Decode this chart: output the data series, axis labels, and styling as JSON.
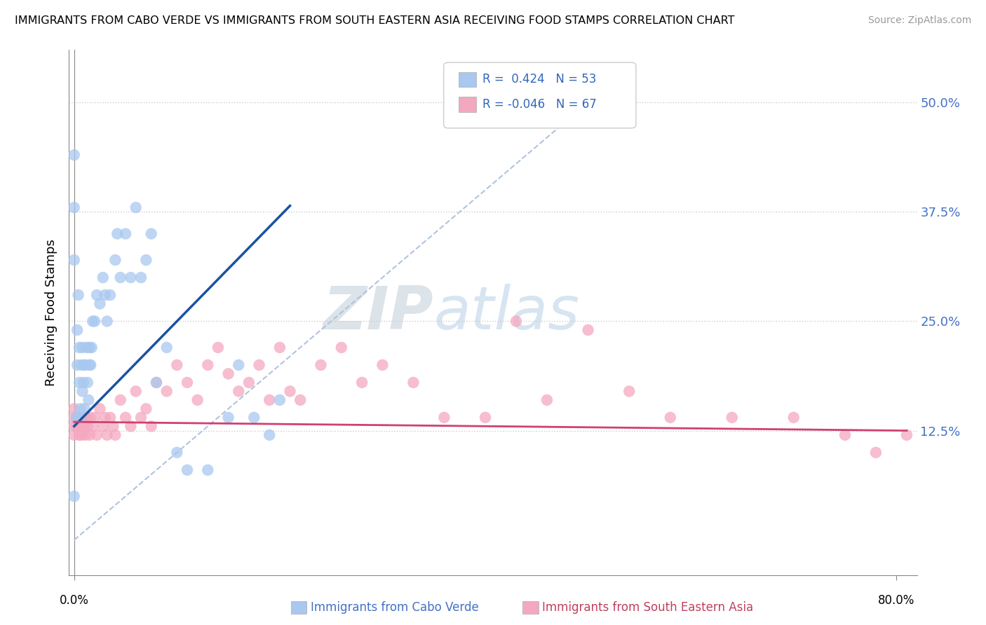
{
  "title": "IMMIGRANTS FROM CABO VERDE VS IMMIGRANTS FROM SOUTH EASTERN ASIA RECEIVING FOOD STAMPS CORRELATION CHART",
  "source": "Source: ZipAtlas.com",
  "ylabel": "Receiving Food Stamps",
  "ytick_labels": [
    "12.5%",
    "25.0%",
    "37.5%",
    "50.0%"
  ],
  "ytick_values": [
    0.125,
    0.25,
    0.375,
    0.5
  ],
  "xlim": [
    -0.005,
    0.82
  ],
  "ylim": [
    -0.04,
    0.56
  ],
  "legend_label1": "Immigrants from Cabo Verde",
  "legend_label2": "Immigrants from South Eastern Asia",
  "R1": "0.424",
  "N1": "53",
  "R2": "-0.046",
  "N2": "67",
  "color1": "#a8c8f0",
  "color2": "#f4a8c0",
  "line_color1": "#1a52a0",
  "line_color2": "#d04070",
  "diagonal_color": "#b0c4de",
  "cabo_verde_x": [
    0.0,
    0.0,
    0.0,
    0.0,
    0.002,
    0.003,
    0.003,
    0.004,
    0.005,
    0.005,
    0.005,
    0.006,
    0.007,
    0.008,
    0.008,
    0.009,
    0.01,
    0.01,
    0.011,
    0.012,
    0.013,
    0.014,
    0.015,
    0.015,
    0.016,
    0.017,
    0.018,
    0.02,
    0.022,
    0.025,
    0.028,
    0.03,
    0.032,
    0.035,
    0.04,
    0.042,
    0.045,
    0.05,
    0.055,
    0.06,
    0.065,
    0.07,
    0.075,
    0.08,
    0.09,
    0.1,
    0.11,
    0.13,
    0.15,
    0.16,
    0.175,
    0.19,
    0.2
  ],
  "cabo_verde_y": [
    0.44,
    0.38,
    0.32,
    0.05,
    0.14,
    0.2,
    0.24,
    0.28,
    0.14,
    0.18,
    0.22,
    0.15,
    0.2,
    0.17,
    0.22,
    0.18,
    0.15,
    0.2,
    0.2,
    0.22,
    0.18,
    0.16,
    0.2,
    0.22,
    0.2,
    0.22,
    0.25,
    0.25,
    0.28,
    0.27,
    0.3,
    0.28,
    0.25,
    0.28,
    0.32,
    0.35,
    0.3,
    0.35,
    0.3,
    0.38,
    0.3,
    0.32,
    0.35,
    0.18,
    0.22,
    0.1,
    0.08,
    0.08,
    0.14,
    0.2,
    0.14,
    0.12,
    0.16
  ],
  "sea_x": [
    0.0,
    0.0,
    0.0,
    0.0,
    0.002,
    0.003,
    0.005,
    0.005,
    0.006,
    0.007,
    0.008,
    0.009,
    0.01,
    0.011,
    0.012,
    0.013,
    0.015,
    0.016,
    0.018,
    0.02,
    0.022,
    0.025,
    0.028,
    0.03,
    0.032,
    0.035,
    0.038,
    0.04,
    0.045,
    0.05,
    0.055,
    0.06,
    0.065,
    0.07,
    0.075,
    0.08,
    0.09,
    0.1,
    0.11,
    0.12,
    0.13,
    0.14,
    0.15,
    0.16,
    0.17,
    0.18,
    0.19,
    0.2,
    0.21,
    0.22,
    0.24,
    0.26,
    0.28,
    0.3,
    0.33,
    0.36,
    0.4,
    0.43,
    0.46,
    0.5,
    0.54,
    0.58,
    0.64,
    0.7,
    0.75,
    0.78,
    0.81
  ],
  "sea_y": [
    0.14,
    0.15,
    0.13,
    0.12,
    0.13,
    0.14,
    0.12,
    0.14,
    0.13,
    0.12,
    0.14,
    0.13,
    0.14,
    0.12,
    0.14,
    0.13,
    0.12,
    0.14,
    0.13,
    0.14,
    0.12,
    0.15,
    0.13,
    0.14,
    0.12,
    0.14,
    0.13,
    0.12,
    0.16,
    0.14,
    0.13,
    0.17,
    0.14,
    0.15,
    0.13,
    0.18,
    0.17,
    0.2,
    0.18,
    0.16,
    0.2,
    0.22,
    0.19,
    0.17,
    0.18,
    0.2,
    0.16,
    0.22,
    0.17,
    0.16,
    0.2,
    0.22,
    0.18,
    0.2,
    0.18,
    0.14,
    0.14,
    0.25,
    0.16,
    0.24,
    0.17,
    0.14,
    0.14,
    0.14,
    0.12,
    0.1,
    0.12
  ]
}
